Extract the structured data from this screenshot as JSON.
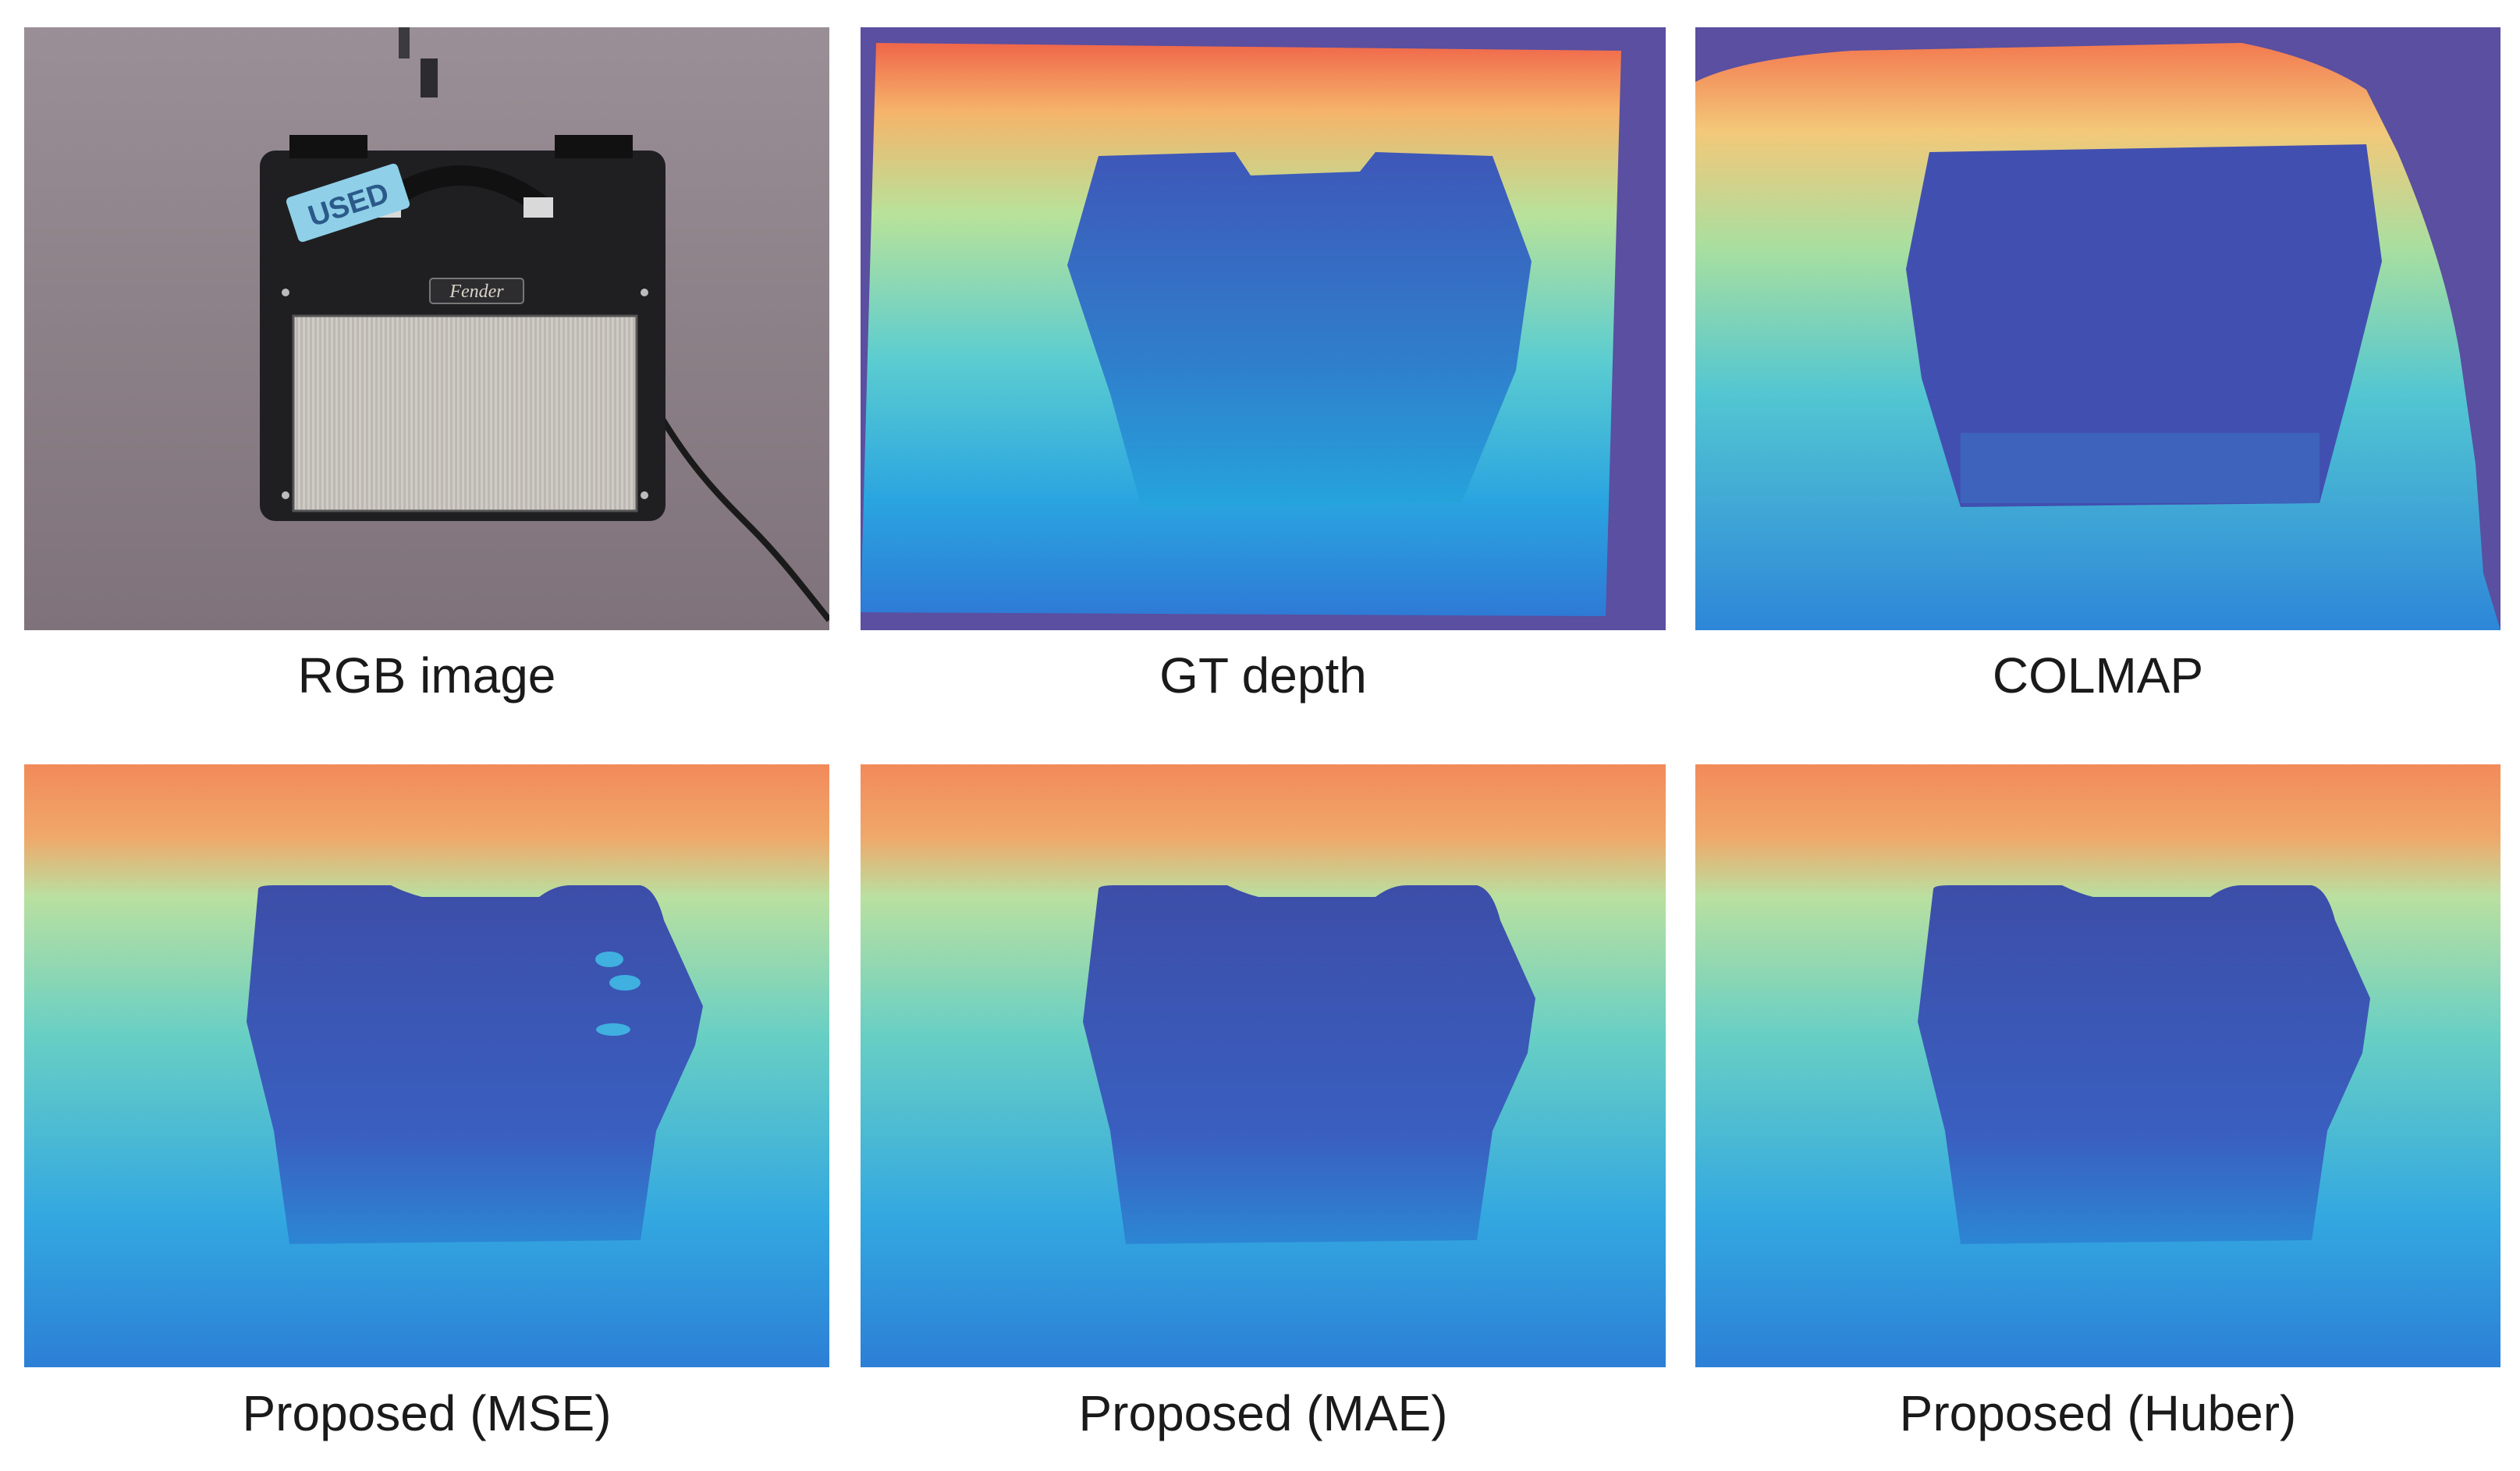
{
  "figure": {
    "panels": [
      {
        "caption": "RGB image",
        "kind": "rgb"
      },
      {
        "caption": "GT depth",
        "kind": "gt"
      },
      {
        "caption": "COLMAP",
        "kind": "colmap"
      },
      {
        "caption": "Proposed (MSE)",
        "kind": "mse"
      },
      {
        "caption": "Proposed (MAE)",
        "kind": "mae"
      },
      {
        "caption": "Proposed (Huber)",
        "kind": "huber"
      }
    ],
    "amp_badge_text": "USED",
    "amp_logo_text": "Fender"
  },
  "colors": {
    "carpet": "#8e8289",
    "amp_body": "#1f1f22",
    "grille": "#c9c6c1",
    "invalid_depth": "#5a4fa0",
    "depth_near": "#2a6fd0",
    "depth_mid": "#7fd6b0",
    "depth_far": "#f0664a",
    "object_depth": "#3e57b8",
    "badge": "#8fd0e8"
  }
}
